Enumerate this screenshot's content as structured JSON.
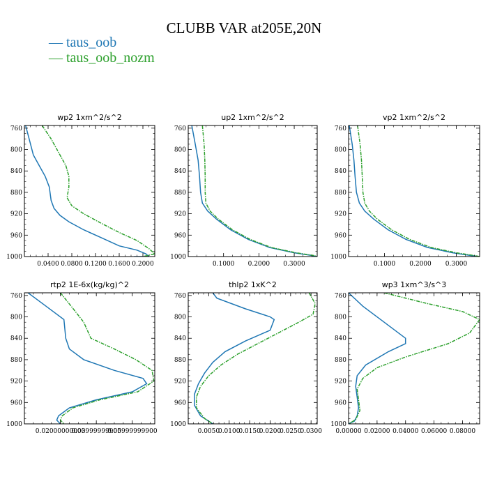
{
  "title": "CLUBB VAR at205E,20N",
  "legend": [
    {
      "label": "taus_oob",
      "color": "#1f77b4"
    },
    {
      "label": "taus_oob_nozm",
      "color": "#2ca02c"
    }
  ],
  "chart_data": [
    {
      "type": "line",
      "title": "wp2   1xm^2/s^2",
      "xlim": [
        0,
        0.22
      ],
      "ylim": [
        1000,
        755
      ],
      "x_ticks": [
        0.04,
        0.08,
        0.12,
        0.16,
        0.2
      ],
      "x_tick_labels": [
        "0.0400",
        "0.0800",
        "0.1200",
        "0.1600",
        "0.2000"
      ],
      "y_ticks": [
        760,
        800,
        840,
        880,
        920,
        960,
        1000
      ],
      "y_tick_labels": [
        "760",
        "800",
        "840",
        "880",
        "920",
        "960",
        "1000"
      ],
      "series": [
        {
          "name": "taus_oob",
          "color": "#1f77b4",
          "x": [
            0.002,
            0.008,
            0.015,
            0.025,
            0.035,
            0.042,
            0.045,
            0.05,
            0.06,
            0.075,
            0.1,
            0.13,
            0.16,
            0.19,
            0.205,
            0.21,
            0.185
          ],
          "y": [
            755,
            780,
            810,
            830,
            850,
            870,
            895,
            910,
            923,
            935,
            950,
            965,
            980,
            988,
            995,
            1000,
            1000
          ]
        },
        {
          "name": "taus_oob_nozm",
          "color": "#2ca02c",
          "x": [
            0.03,
            0.045,
            0.06,
            0.07,
            0.075,
            0.075,
            0.072,
            0.08,
            0.1,
            0.13,
            0.16,
            0.19,
            0.21,
            0.22,
            0.2
          ],
          "y": [
            755,
            780,
            810,
            830,
            850,
            870,
            890,
            905,
            920,
            938,
            955,
            970,
            985,
            995,
            1000
          ]
        }
      ]
    },
    {
      "type": "line",
      "title": "up2   1xm^2/s^2",
      "xlim": [
        0,
        0.365
      ],
      "ylim": [
        1000,
        755
      ],
      "x_ticks": [
        0.1,
        0.2,
        0.3
      ],
      "x_tick_labels": [
        "0.1000",
        "0.2000",
        "0.3000"
      ],
      "y_ticks": [
        760,
        800,
        840,
        880,
        920,
        960,
        1000
      ],
      "y_tick_labels": [
        "760",
        "800",
        "840",
        "880",
        "920",
        "960",
        "1000"
      ],
      "series": [
        {
          "name": "taus_oob",
          "color": "#1f77b4",
          "x": [
            0.01,
            0.02,
            0.028,
            0.032,
            0.035,
            0.04,
            0.055,
            0.08,
            0.12,
            0.17,
            0.23,
            0.3,
            0.35,
            0.365
          ],
          "y": [
            755,
            790,
            820,
            850,
            880,
            900,
            915,
            930,
            950,
            968,
            983,
            993,
            998,
            1000
          ]
        },
        {
          "name": "taus_oob_nozm",
          "color": "#2ca02c",
          "x": [
            0.04,
            0.045,
            0.047,
            0.048,
            0.048,
            0.05,
            0.062,
            0.085,
            0.125,
            0.175,
            0.235,
            0.305,
            0.355,
            0.365
          ],
          "y": [
            755,
            790,
            820,
            850,
            880,
            900,
            915,
            930,
            950,
            968,
            983,
            993,
            998,
            1000
          ]
        }
      ]
    },
    {
      "type": "line",
      "title": "vp2   1xm^2/s^2",
      "xlim": [
        0,
        0.365
      ],
      "ylim": [
        1000,
        755
      ],
      "x_ticks": [
        0.1,
        0.2,
        0.3
      ],
      "x_tick_labels": [
        "0.1000",
        "0.2000",
        "0.3000"
      ],
      "y_ticks": [
        760,
        800,
        840,
        880,
        920,
        960,
        1000
      ],
      "y_tick_labels": [
        "760",
        "800",
        "840",
        "880",
        "920",
        "960",
        "1000"
      ],
      "series": [
        {
          "name": "taus_oob",
          "color": "#1f77b4",
          "x": [
            0.002,
            0.01,
            0.015,
            0.018,
            0.022,
            0.03,
            0.045,
            0.07,
            0.11,
            0.16,
            0.22,
            0.29,
            0.34,
            0.365
          ],
          "y": [
            755,
            790,
            820,
            850,
            880,
            900,
            915,
            930,
            950,
            968,
            983,
            993,
            998,
            1000
          ]
        },
        {
          "name": "taus_oob_nozm",
          "color": "#2ca02c",
          "x": [
            0.025,
            0.032,
            0.036,
            0.038,
            0.04,
            0.045,
            0.058,
            0.08,
            0.12,
            0.17,
            0.23,
            0.3,
            0.35,
            0.365
          ],
          "y": [
            755,
            790,
            820,
            850,
            880,
            900,
            915,
            930,
            950,
            968,
            983,
            993,
            998,
            1000
          ]
        }
      ]
    },
    {
      "type": "line",
      "title": "rtp2   1E-6x(kg/kg)^2",
      "xlim": [
        0,
        0.0725
      ],
      "ylim": [
        1000,
        755
      ],
      "x_ticks": [
        0.02,
        0.04,
        0.06
      ],
      "x_tick_labels": [
        "0.02000000000",
        "0.03999999900",
        "0.05999999900"
      ],
      "y_ticks": [
        760,
        800,
        840,
        880,
        920,
        960,
        1000
      ],
      "y_tick_labels": [
        "760",
        "800",
        "840",
        "880",
        "920",
        "960",
        "1000"
      ],
      "series": [
        {
          "name": "taus_oob",
          "color": "#1f77b4",
          "x": [
            0.002,
            0.012,
            0.022,
            0.023,
            0.025,
            0.033,
            0.05,
            0.066,
            0.068,
            0.06,
            0.04,
            0.025,
            0.019,
            0.018,
            0.02
          ],
          "y": [
            755,
            780,
            805,
            840,
            860,
            880,
            900,
            915,
            925,
            940,
            955,
            970,
            985,
            993,
            1000
          ]
        },
        {
          "name": "taus_oob_nozm",
          "color": "#2ca02c",
          "x": [
            0.02,
            0.026,
            0.033,
            0.037,
            0.05,
            0.062,
            0.071,
            0.072,
            0.063,
            0.042,
            0.027,
            0.021,
            0.02,
            0.022
          ],
          "y": [
            755,
            780,
            810,
            840,
            860,
            880,
            900,
            920,
            940,
            955,
            970,
            985,
            993,
            1000
          ]
        }
      ]
    },
    {
      "type": "line",
      "title": "thlp2   1xK^2",
      "xlim": [
        0,
        0.0315
      ],
      "ylim": [
        1000,
        755
      ],
      "x_ticks": [
        0.005,
        0.01,
        0.015,
        0.02,
        0.025,
        0.03
      ],
      "x_tick_labels": [
        "0.0050",
        "0.0100",
        "0.0150",
        "0.0200",
        "0.0250",
        "0.0300"
      ],
      "y_ticks": [
        760,
        800,
        840,
        880,
        920,
        960,
        1000
      ],
      "y_tick_labels": [
        "760",
        "800",
        "840",
        "880",
        "920",
        "960",
        "1000"
      ],
      "series": [
        {
          "name": "taus_oob",
          "color": "#1f77b4",
          "x": [
            0.006,
            0.007,
            0.014,
            0.02,
            0.021,
            0.02,
            0.014,
            0.009,
            0.006,
            0.004,
            0.0025,
            0.0015,
            0.0015,
            0.003,
            0.006
          ],
          "y": [
            755,
            765,
            785,
            800,
            805,
            825,
            845,
            865,
            885,
            905,
            925,
            945,
            965,
            985,
            1000
          ]
        },
        {
          "name": "taus_oob_nozm",
          "color": "#2ca02c",
          "x": [
            0.0295,
            0.031,
            0.0305,
            0.027,
            0.022,
            0.017,
            0.012,
            0.008,
            0.005,
            0.003,
            0.002,
            0.002,
            0.004,
            0.006
          ],
          "y": [
            755,
            775,
            795,
            810,
            830,
            850,
            870,
            890,
            910,
            930,
            950,
            970,
            990,
            1000
          ]
        }
      ]
    },
    {
      "type": "line",
      "title": "wp3   1xm^3/s^3",
      "xlim": [
        0,
        0.092
      ],
      "ylim": [
        1000,
        755
      ],
      "x_ticks": [
        0.0,
        0.02,
        0.04,
        0.06,
        0.08
      ],
      "x_tick_labels": [
        "0.00000",
        "0.02000",
        "0.04000",
        "0.06000",
        "0.08000"
      ],
      "y_ticks": [
        760,
        800,
        840,
        880,
        920,
        960,
        1000
      ],
      "y_tick_labels": [
        "760",
        "800",
        "840",
        "880",
        "920",
        "960",
        "1000"
      ],
      "series": [
        {
          "name": "taus_oob",
          "color": "#1f77b4",
          "x": [
            0.0,
            0.01,
            0.025,
            0.04,
            0.04,
            0.028,
            0.012,
            0.006,
            0.005,
            0.006,
            0.007,
            0.006,
            0.004,
            0.0
          ],
          "y": [
            755,
            780,
            810,
            840,
            850,
            865,
            890,
            910,
            930,
            950,
            970,
            985,
            995,
            1000
          ]
        },
        {
          "name": "taus_oob_nozm",
          "color": "#2ca02c",
          "x": [
            0.025,
            0.055,
            0.08,
            0.092,
            0.085,
            0.07,
            0.04,
            0.02,
            0.01,
            0.006,
            0.007,
            0.008,
            0.005,
            0.0
          ],
          "y": [
            755,
            775,
            790,
            805,
            830,
            850,
            875,
            895,
            915,
            935,
            955,
            975,
            992,
            1000
          ]
        }
      ]
    }
  ]
}
